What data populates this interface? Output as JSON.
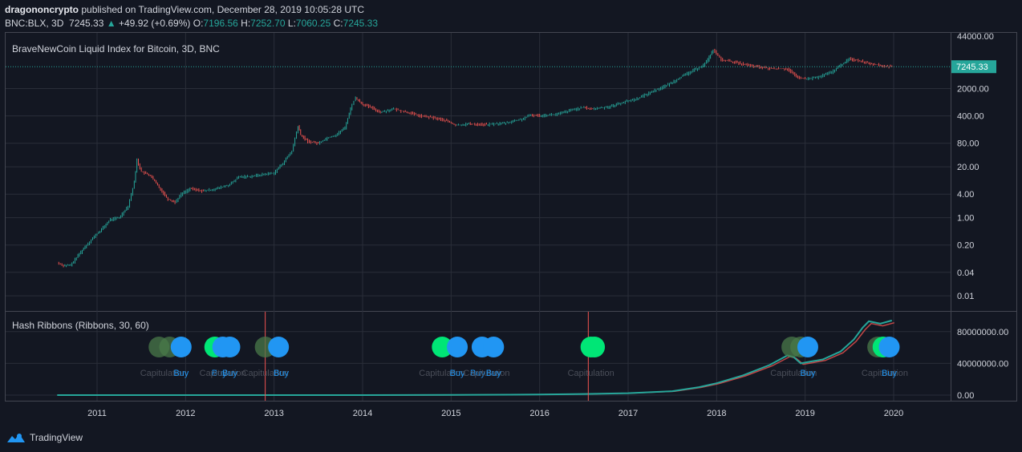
{
  "header": {
    "author": "dragononcrypto",
    "published": "published on TradingView.com, December 28, 2019 10:05:28 UTC",
    "symbol": "BNC:BLX, 3D",
    "last": "7245.33",
    "arrow": "▲",
    "change": "+49.92 (+0.69%)",
    "o_label": "O:",
    "o_value": "7196.56",
    "h_label": "H:",
    "h_value": "7252.70",
    "l_label": "L:",
    "l_value": "7060.25",
    "c_label": "C:",
    "c_value": "7245.33"
  },
  "footer": {
    "brand": "TradingView"
  },
  "colors": {
    "background": "#131722",
    "grid": "#2a2e39",
    "up": "#26a69a",
    "down": "#ef5350",
    "buy": "#2196f3",
    "ribbon_green": "#00e676",
    "ribbon_dark": "#4a7a4a",
    "capitulation_line": "#ef5350"
  },
  "chart_data": [
    {
      "type": "line",
      "title": "BraveNewCoin Liquid Index for Bitcoin, 3D, BNC",
      "scale": "log",
      "ylim": [
        0.006,
        44000
      ],
      "y_ticks": [
        "44000.00",
        "2000.00",
        "400.00",
        "80.00",
        "20.00",
        "4.00",
        "1.00",
        "0.20",
        "0.04",
        "0.01"
      ],
      "y_tick_values": [
        44000,
        2000,
        400,
        80,
        20,
        4,
        1,
        0.2,
        0.04,
        0.01
      ],
      "x_ticks": [
        "2011",
        "2012",
        "2013",
        "2014",
        "2015",
        "2016",
        "2017",
        "2018",
        "2019",
        "2020"
      ],
      "x_tick_values": [
        2011,
        2012,
        2013,
        2014,
        2015,
        2016,
        2017,
        2018,
        2019,
        2020
      ],
      "last_price_label": "7245.33",
      "last_price": 7245.33,
      "series": [
        {
          "x": [
            2010.55,
            2010.62,
            2010.7,
            2010.8,
            2010.88,
            2010.95,
            2011.05,
            2011.15,
            2011.25,
            2011.35,
            2011.42,
            2011.45,
            2011.5,
            2011.6,
            2011.7,
            2011.8,
            2011.88,
            2011.95,
            2012.05,
            2012.2,
            2012.35,
            2012.5,
            2012.6,
            2012.75,
            2012.9,
            2013.0,
            2013.1,
            2013.2,
            2013.27,
            2013.3,
            2013.38,
            2013.5,
            2013.6,
            2013.7,
            2013.8,
            2013.88,
            2013.92,
            2014.0,
            2014.1,
            2014.2,
            2014.35,
            2014.5,
            2014.65,
            2014.8,
            2014.95,
            2015.05,
            2015.2,
            2015.4,
            2015.6,
            2015.8,
            2015.9,
            2016.0,
            2016.2,
            2016.4,
            2016.5,
            2016.6,
            2016.8,
            2016.95,
            2017.1,
            2017.3,
            2017.45,
            2017.6,
            2017.75,
            2017.85,
            2017.9,
            2017.96,
            2018.05,
            2018.2,
            2018.4,
            2018.6,
            2018.8,
            2018.9,
            2019.0,
            2019.15,
            2019.3,
            2019.42,
            2019.5,
            2019.6,
            2019.72,
            2019.8,
            2019.88,
            2019.98
          ],
          "y": [
            0.07,
            0.06,
            0.06,
            0.12,
            0.2,
            0.3,
            0.5,
            0.9,
            1.0,
            2.0,
            8.0,
            30.0,
            15.0,
            12.0,
            6.0,
            3.0,
            2.5,
            4.0,
            5.5,
            4.8,
            5.5,
            7.0,
            11.0,
            11.5,
            13.0,
            14.0,
            25.0,
            50.0,
            220.0,
            130.0,
            90.0,
            80.0,
            110.0,
            130.0,
            200.0,
            800.0,
            1150.0,
            800.0,
            650.0,
            500.0,
            600.0,
            500.0,
            400.0,
            360.0,
            300.0,
            230.0,
            250.0,
            240.0,
            260.0,
            330.0,
            420.0,
            410.0,
            440.0,
            600.0,
            650.0,
            600.0,
            700.0,
            900.0,
            1100.0,
            1800.0,
            2500.0,
            4000.0,
            6000.0,
            8000.0,
            11000.0,
            19500.0,
            11000.0,
            9500.0,
            7500.0,
            6500.0,
            6400.0,
            4000.0,
            3500.0,
            3900.0,
            5300.0,
            8500.0,
            11500.0,
            10500.0,
            9000.0,
            8200.0,
            7500.0,
            7245.33
          ]
        }
      ]
    },
    {
      "type": "line",
      "title": "Hash Ribbons (Ribbons, 30, 60)",
      "ylim": [
        -5000000,
        102000000
      ],
      "y_ticks": [
        "80000000.00",
        "40000000.00",
        "0.00"
      ],
      "y_tick_values": [
        80000000,
        40000000,
        0
      ],
      "series": [
        {
          "x": [
            2010.55,
            2013.0,
            2014.0,
            2015.0,
            2016.0,
            2016.5,
            2017.0,
            2017.5,
            2017.8,
            2018.0,
            2018.3,
            2018.6,
            2018.8,
            2018.87,
            2018.95,
            2019.05,
            2019.2,
            2019.4,
            2019.55,
            2019.65,
            2019.72,
            2019.85,
            2019.98
          ],
          "y": [
            0,
            0,
            0,
            200000,
            800000,
            1500000,
            2500000,
            5000000,
            10000000,
            15000000,
            25000000,
            38000000,
            50000000,
            48000000,
            40000000,
            42000000,
            45000000,
            55000000,
            70000000,
            85000000,
            93000000,
            90000000,
            94000000
          ]
        }
      ],
      "capitulation_lines_x": [
        2012.9,
        2016.55
      ],
      "markers": [
        {
          "x": 2011.75,
          "text": "Capitulation",
          "type": "capitulation"
        },
        {
          "x": 2011.95,
          "text": "Buy",
          "type": "buy"
        },
        {
          "x": 2012.38,
          "text": "Buy",
          "type": "buy"
        },
        {
          "x": 2012.42,
          "text": "Capitulation",
          "type": "capitulation"
        },
        {
          "x": 2012.5,
          "text": "Buy",
          "type": "buy"
        },
        {
          "x": 2012.9,
          "text": "Capitulation",
          "type": "capitulation"
        },
        {
          "x": 2013.08,
          "text": "Buy",
          "type": "buy"
        },
        {
          "x": 2014.9,
          "text": "Capitulation",
          "type": "capitulation"
        },
        {
          "x": 2015.07,
          "text": "Buy",
          "type": "buy"
        },
        {
          "x": 2015.3,
          "text": "Buy",
          "type": "buy"
        },
        {
          "x": 2015.4,
          "text": "Capitulation",
          "type": "capitulation"
        },
        {
          "x": 2015.48,
          "text": "Buy",
          "type": "buy"
        },
        {
          "x": 2016.58,
          "text": "Capitulation",
          "type": "capitulation"
        },
        {
          "x": 2018.87,
          "text": "Capitulation",
          "type": "capitulation"
        },
        {
          "x": 2019.03,
          "text": "Buy",
          "type": "buy"
        },
        {
          "x": 2019.9,
          "text": "Capitulation",
          "type": "capitulation"
        },
        {
          "x": 2019.95,
          "text": "Buy",
          "type": "buy"
        }
      ],
      "bubbles": [
        {
          "x": 2011.7,
          "kind": "dark"
        },
        {
          "x": 2011.82,
          "kind": "dark"
        },
        {
          "x": 2011.95,
          "kind": "buy"
        },
        {
          "x": 2012.33,
          "kind": "green"
        },
        {
          "x": 2012.42,
          "kind": "buy"
        },
        {
          "x": 2012.5,
          "kind": "buy"
        },
        {
          "x": 2012.9,
          "kind": "dark"
        },
        {
          "x": 2013.05,
          "kind": "buy"
        },
        {
          "x": 2014.9,
          "kind": "green"
        },
        {
          "x": 2015.07,
          "kind": "buy"
        },
        {
          "x": 2015.35,
          "kind": "buy"
        },
        {
          "x": 2015.48,
          "kind": "buy"
        },
        {
          "x": 2016.58,
          "kind": "green"
        },
        {
          "x": 2016.62,
          "kind": "green"
        },
        {
          "x": 2018.85,
          "kind": "dark"
        },
        {
          "x": 2018.95,
          "kind": "dark"
        },
        {
          "x": 2019.03,
          "kind": "buy"
        },
        {
          "x": 2019.82,
          "kind": "dark"
        },
        {
          "x": 2019.88,
          "kind": "green"
        },
        {
          "x": 2019.95,
          "kind": "buy"
        }
      ]
    }
  ]
}
